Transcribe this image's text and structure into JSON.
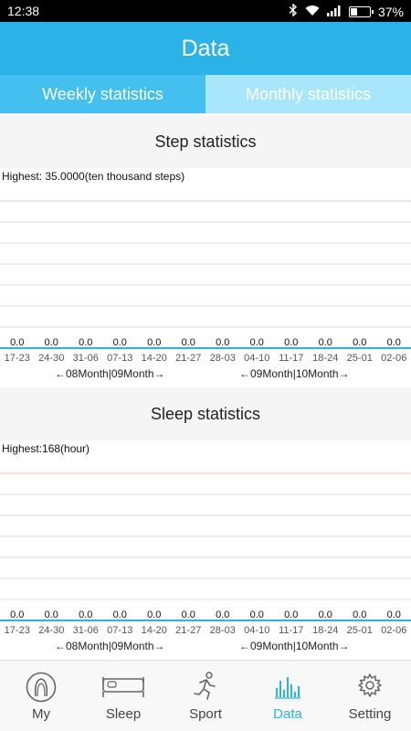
{
  "status": {
    "time": "12:38",
    "battery": "37%",
    "battery_level": 0.37
  },
  "header": {
    "title": "Data"
  },
  "tabs": [
    {
      "label": "Weekly statistics"
    },
    {
      "label": "Monthly statistics"
    }
  ],
  "step": {
    "title": "Step statistics",
    "highest": "Highest: 35.0000(ten thousand steps)",
    "ranges": [
      "←08Month|09Month→",
      "←09Month|10Month→"
    ]
  },
  "sleep": {
    "title": "Sleep statistics",
    "highest": "Highest:168(hour)",
    "ranges": [
      "←08Month|09Month→",
      "←09Month|10Month→"
    ]
  },
  "chart_data": [
    {
      "type": "bar",
      "categories": [
        "17-23",
        "24-30",
        "31-06",
        "07-13",
        "14-20",
        "21-27",
        "28-03",
        "04-10",
        "11-17",
        "18-24",
        "25-01",
        "02-06"
      ],
      "values": [
        0,
        0,
        0,
        0,
        0,
        0,
        0,
        0,
        0,
        0,
        0,
        0
      ],
      "value_labels": [
        "0.0",
        "0.0",
        "0.0",
        "0.0",
        "0.0",
        "0.0",
        "0.0",
        "0.0",
        "0.0",
        "0.0",
        "0.0",
        "0.0"
      ],
      "grid": true,
      "colors": {
        "axis": "#2bb2e6",
        "top_line": "#f3c9b8",
        "grid": "#dcdcdc"
      }
    },
    {
      "type": "bar",
      "categories": [
        "17-23",
        "24-30",
        "31-06",
        "07-13",
        "14-20",
        "21-27",
        "28-03",
        "04-10",
        "11-17",
        "18-24",
        "25-01",
        "02-06"
      ],
      "values": [
        0,
        0,
        0,
        0,
        0,
        0,
        0,
        0,
        0,
        0,
        0,
        0
      ],
      "value_labels": [
        "0.0",
        "0.0",
        "0.0",
        "0.0",
        "0.0",
        "0.0",
        "0.0",
        "0.0",
        "0.0",
        "0.0",
        "0.0",
        "0.0"
      ],
      "grid": true,
      "colors": {
        "axis": "#2bb2e6",
        "top_line": "#f3c9b8",
        "grid": "#dcdcdc"
      }
    }
  ],
  "nav": [
    {
      "label": "My",
      "icon": "profile-icon",
      "active": false
    },
    {
      "label": "Sleep",
      "icon": "bed-icon",
      "active": false
    },
    {
      "label": "Sport",
      "icon": "running-icon",
      "active": false
    },
    {
      "label": "Data",
      "icon": "bar-chart-icon",
      "active": true
    },
    {
      "label": "Setting",
      "icon": "gear-icon",
      "active": false
    }
  ],
  "colors": {
    "primary": "#2bb2e6",
    "tab_active": "#43c0ef",
    "tab_inactive": "#a7e6fb"
  }
}
